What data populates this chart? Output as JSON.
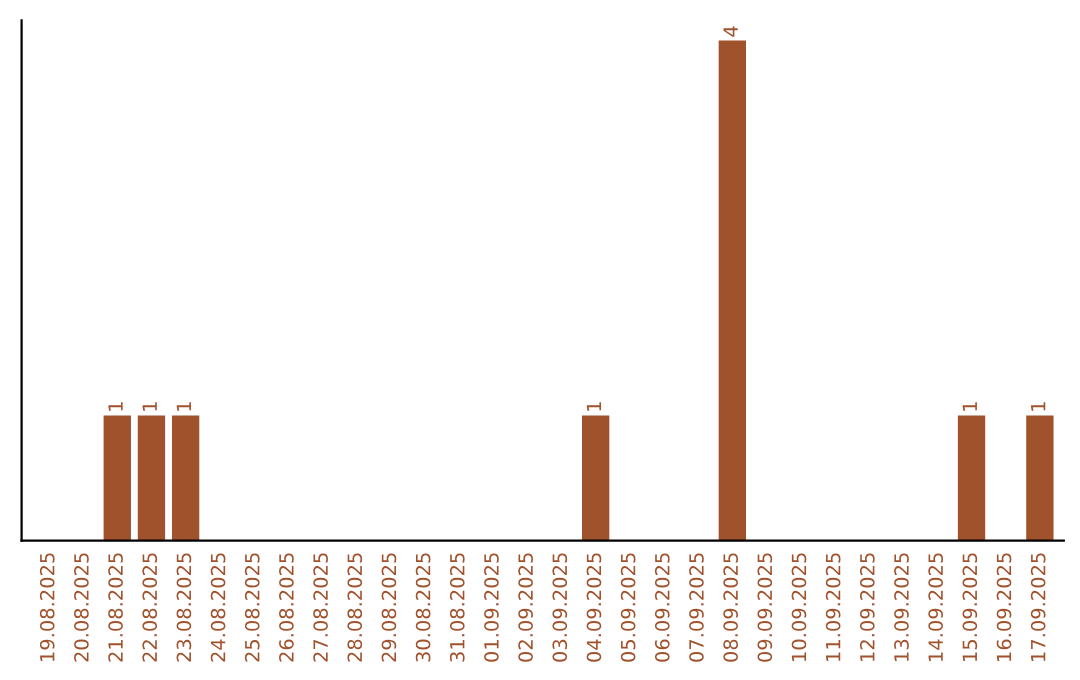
{
  "chart_data": {
    "type": "bar",
    "categories": [
      "19.08.2025",
      "20.08.2025",
      "21.08.2025",
      "22.08.2025",
      "23.08.2025",
      "24.08.2025",
      "25.08.2025",
      "26.08.2025",
      "27.08.2025",
      "28.08.2025",
      "29.08.2025",
      "30.08.2025",
      "31.08.2025",
      "01.09.2025",
      "02.09.2025",
      "03.09.2025",
      "04.09.2025",
      "05.09.2025",
      "06.09.2025",
      "07.09.2025",
      "08.09.2025",
      "09.09.2025",
      "10.09.2025",
      "11.09.2025",
      "12.09.2025",
      "13.09.2025",
      "14.09.2025",
      "15.09.2025",
      "16.09.2025",
      "17.09.2025"
    ],
    "values": [
      0,
      0,
      1,
      1,
      1,
      0,
      0,
      0,
      0,
      0,
      0,
      0,
      0,
      0,
      0,
      0,
      1,
      0,
      0,
      0,
      4,
      0,
      0,
      0,
      0,
      0,
      0,
      1,
      0,
      1
    ],
    "color": "#a0522d",
    "value_labels": [
      null,
      null,
      "1",
      "1",
      "1",
      null,
      null,
      null,
      null,
      null,
      null,
      null,
      null,
      null,
      null,
      null,
      "1",
      null,
      null,
      null,
      "4",
      null,
      null,
      null,
      null,
      null,
      null,
      "1",
      null,
      "1"
    ],
    "tick_labels": "x",
    "grid": false,
    "legend": false
  }
}
